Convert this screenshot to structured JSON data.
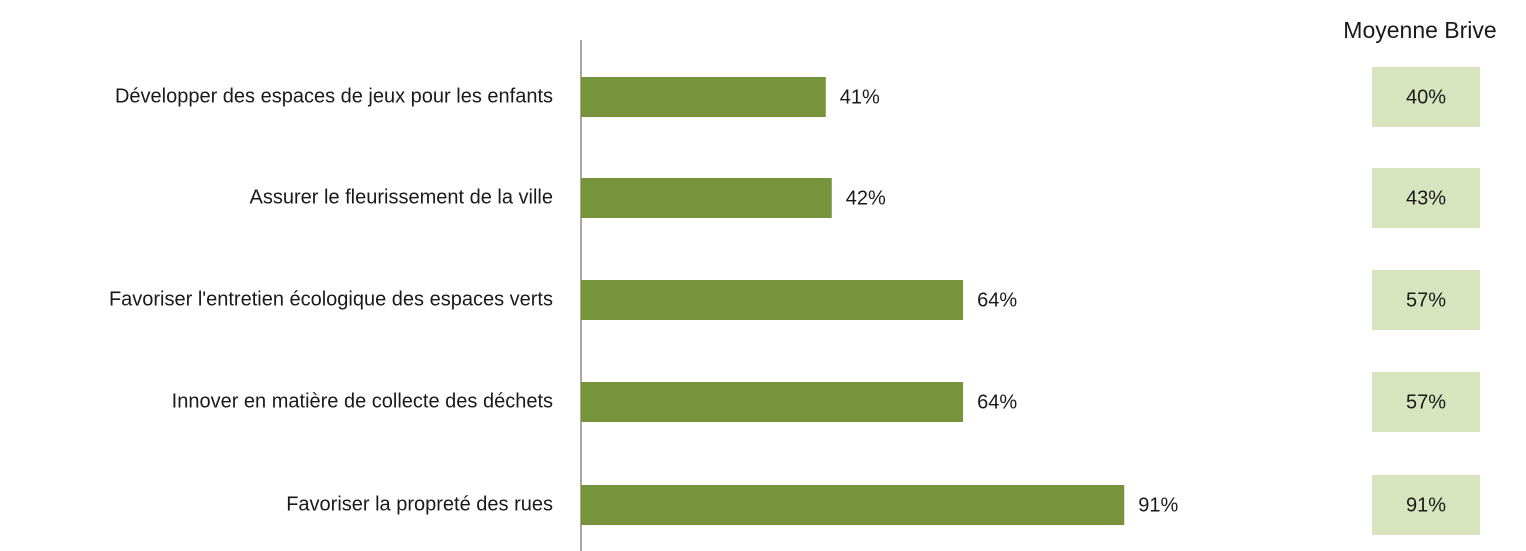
{
  "chart_data": {
    "type": "bar",
    "orientation": "horizontal",
    "categories": [
      "Développer des espaces de jeux pour les enfants",
      "Assurer le fleurissement de la ville",
      "Favoriser l'entretien écologique des espaces verts",
      "Innover en matière de collecte des déchets",
      "Favoriser la propreté des rues"
    ],
    "values": [
      41,
      42,
      64,
      64,
      91
    ],
    "value_labels": [
      "41%",
      "42%",
      "64%",
      "64%",
      "91%"
    ],
    "color": "#77933c",
    "xlim": [
      0,
      100
    ],
    "comparison": {
      "title": "Moyenne Brive",
      "values": [
        40,
        43,
        57,
        57,
        91
      ],
      "value_labels": [
        "40%",
        "43%",
        "57%",
        "57%",
        "91%"
      ],
      "color": "#d7e4bd"
    }
  }
}
